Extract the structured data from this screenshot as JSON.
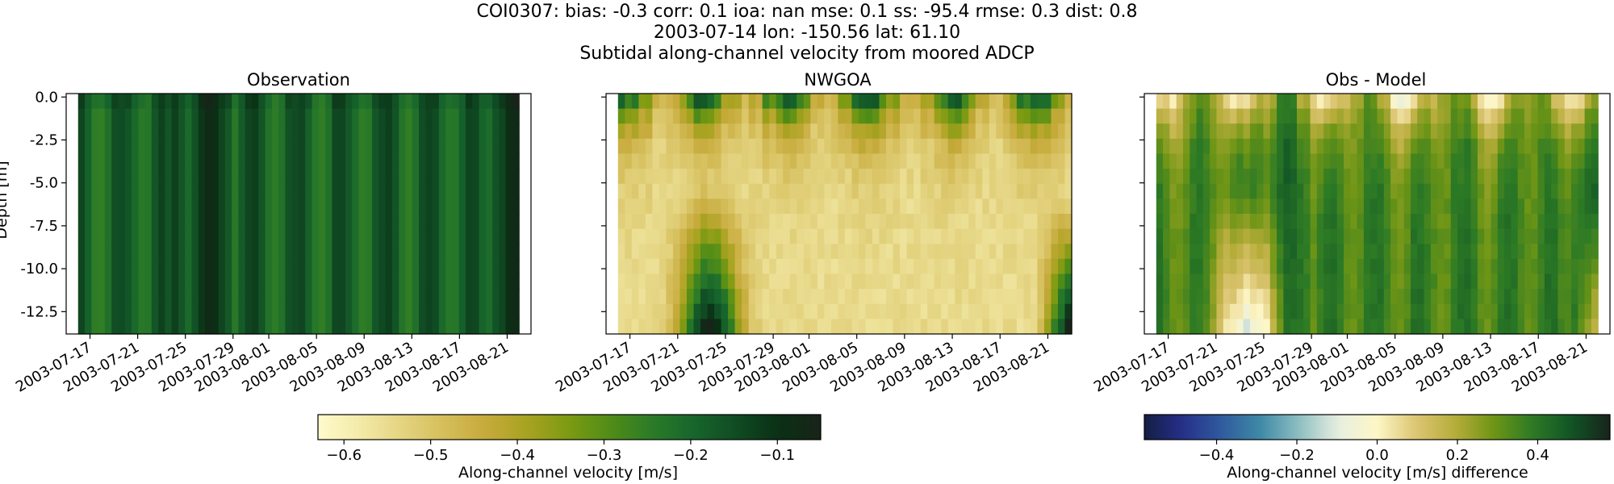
{
  "figure": {
    "title_lines": [
      "COI0307: bias: -0.3  corr: 0.1  ioa: nan  mse: 0.1  ss: -95.4  rmse: 0.3  dist: 0.8",
      "2003-07-14 lon: -150.56 lat: 61.10",
      "Subtidal along-channel velocity from moored ADCP"
    ]
  },
  "colors": {
    "speed_cmap": [
      "#fffbcc",
      "#f3eaa8",
      "#e4d481",
      "#d5be5b",
      "#c6aa3b",
      "#a7a320",
      "#7c9a12",
      "#4f8c18",
      "#2a7a28",
      "#17652c",
      "#104b23",
      "#0a2f14",
      "#18241a"
    ],
    "diff_cmap": [
      "#151d44",
      "#26308a",
      "#2f5b9e",
      "#3f8aa6",
      "#8fbfc2",
      "#e8efe1",
      "#fdf6c6",
      "#dcc572",
      "#b7ad3b",
      "#6e9516",
      "#2c7a25",
      "#115426",
      "#18241a"
    ],
    "nan_fill": "#ffffff"
  },
  "chart_data": [
    {
      "type": "heatmap",
      "panel": "observation",
      "title": "Observation",
      "xlabel": "",
      "ylabel": "Depth [m]",
      "x_tick_labels": [
        "2003-07-17",
        "2003-07-21",
        "2003-07-25",
        "2003-07-29",
        "2003-08-01",
        "2003-08-05",
        "2003-08-09",
        "2003-08-13",
        "2003-08-17",
        "2003-08-21"
      ],
      "y_tick_labels": [
        "0.0",
        "-2.5",
        "-5.0",
        "-7.5",
        "-10.0",
        "-12.5"
      ],
      "y_ticks": [
        0.0,
        -2.5,
        -5.0,
        -7.5,
        -10.0,
        -12.5
      ],
      "ylim": [
        -13.8,
        0.2
      ],
      "time_range_days": [
        "2003-07-15",
        "2003-08-23"
      ],
      "data_time_range": [
        "2003-07-15",
        "2003-08-22"
      ],
      "depth_range": [
        -13.8,
        0.2
      ],
      "n_time_bins": 66,
      "n_depth_bins": 16,
      "value_description": "Along-channel velocity, nearly uniform about -0.18 m/s with darker streaks near -0.1 m/s",
      "vmin": -0.63,
      "vmax": -0.05,
      "colorbar": "speed"
    },
    {
      "type": "heatmap",
      "panel": "model",
      "title": "NWGOA",
      "xlabel": "",
      "ylabel": "",
      "x_tick_labels": [
        "2003-07-17",
        "2003-07-21",
        "2003-07-25",
        "2003-07-29",
        "2003-08-01",
        "2003-08-05",
        "2003-08-09",
        "2003-08-13",
        "2003-08-17",
        "2003-08-21"
      ],
      "y_tick_labels": [],
      "ylim": [
        -13.8,
        0.2
      ],
      "time_range_days": [
        "2003-07-15",
        "2003-08-23"
      ],
      "data_time_range": [
        "2003-07-15",
        "2003-08-23"
      ],
      "depth_range": [
        -13.8,
        0.2
      ],
      "n_time_bins": 66,
      "n_depth_bins": 16,
      "value_description": "Surface-intensified dark band, pale (-0.6 m/s) interior, dark green column near 2003-07-23 at depth",
      "vmin": -0.63,
      "vmax": -0.05,
      "colorbar": "speed"
    },
    {
      "type": "heatmap",
      "panel": "difference",
      "title": "Obs - Model",
      "xlabel": "",
      "ylabel": "",
      "x_tick_labels": [
        "2003-07-17",
        "2003-07-21",
        "2003-07-25",
        "2003-07-29",
        "2003-08-01",
        "2003-08-05",
        "2003-08-09",
        "2003-08-13",
        "2003-08-17",
        "2003-08-21"
      ],
      "y_tick_labels": [],
      "ylim": [
        -13.8,
        0.2
      ],
      "time_range_days": [
        "2003-07-15",
        "2003-08-23"
      ],
      "data_time_range": [
        "2003-07-15",
        "2003-08-22"
      ],
      "depth_range": [
        -13.8,
        0.2
      ],
      "n_time_bins": 66,
      "n_depth_bins": 16,
      "value_description": "Mostly positive differences (0.2–0.5 m/s); near-zero and slightly negative near 2003-07-23 at depth",
      "vmin": -0.58,
      "vmax": 0.58,
      "colorbar": "diff"
    }
  ],
  "colorbars": {
    "speed": {
      "label": "Along-channel velocity [m/s]",
      "vmin": -0.63,
      "vmax": -0.05,
      "ticks": [
        -0.6,
        -0.5,
        -0.4,
        -0.3,
        -0.2,
        -0.1
      ],
      "tick_labels": [
        "−0.6",
        "−0.5",
        "−0.4",
        "−0.3",
        "−0.2",
        "−0.1"
      ]
    },
    "diff": {
      "label": "Along-channel velocity [m/s] difference",
      "vmin": -0.58,
      "vmax": 0.58,
      "ticks": [
        -0.4,
        -0.2,
        0.0,
        0.2,
        0.4
      ],
      "tick_labels": [
        "−0.4",
        "−0.2",
        "0.0",
        "0.2",
        "0.4"
      ]
    }
  }
}
